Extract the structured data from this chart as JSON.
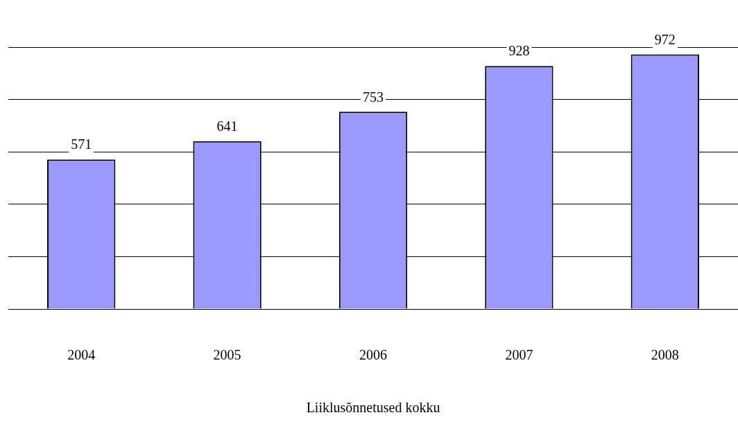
{
  "chart_data": {
    "type": "bar",
    "xlabel": "Liiklusõnnetused kokku",
    "categories": [
      "2004",
      "2005",
      "2006",
      "2007",
      "2008"
    ],
    "values": [
      571,
      641,
      753,
      928,
      972
    ],
    "color": "#9999ff",
    "data_labels": true,
    "grid": "y",
    "tick_labels": "x",
    "ylim": [
      0,
      1000
    ]
  }
}
